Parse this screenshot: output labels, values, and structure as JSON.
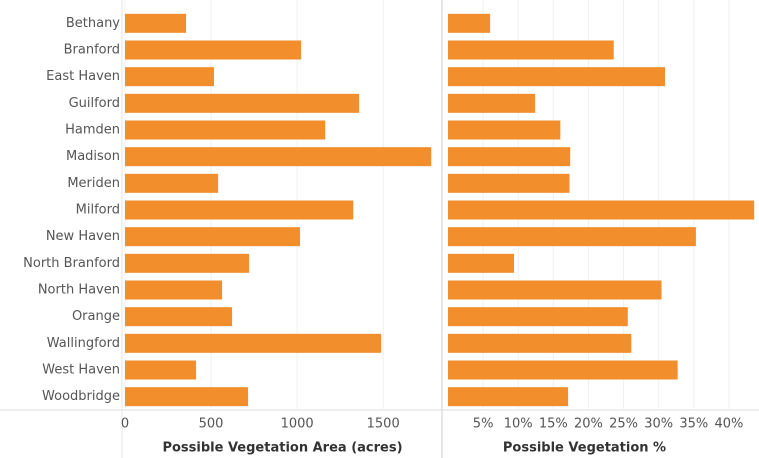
{
  "chart_data": {
    "type": "bar",
    "categories": [
      "Bethany",
      "Branford",
      "East Haven",
      "Guilford",
      "Hamden",
      "Madison",
      "Meriden",
      "Milford",
      "New Haven",
      "North Branford",
      "North Haven",
      "Orange",
      "Wallingford",
      "West Haven",
      "Woodbridge"
    ],
    "grid": true,
    "panels": [
      {
        "xlabel": "Possible Vegetation Area (acres)",
        "color": "#f28e2b",
        "values": [
          355,
          1023,
          517,
          1360,
          1163,
          1779,
          541,
          1326,
          1017,
          721,
          564,
          622,
          1488,
          413,
          715
        ],
        "xlim": [
          0,
          1830
        ],
        "xticks": [
          0,
          500,
          1000,
          1500
        ]
      },
      {
        "xlabel": "Possible Vegetation %",
        "color": "#f28e2b",
        "values": [
          6.0,
          23.6,
          30.9,
          12.4,
          16.0,
          17.4,
          17.3,
          43.6,
          35.3,
          9.4,
          30.4,
          25.6,
          26.1,
          32.7,
          17.1
        ],
        "xlim": [
          0,
          44
        ],
        "xticks": [
          {
            "value": 5,
            "label": "5%"
          },
          {
            "value": 10,
            "label": "10%"
          },
          {
            "value": 15,
            "label": "15%"
          },
          {
            "value": 20,
            "label": "20%"
          },
          {
            "value": 25,
            "label": "25%"
          },
          {
            "value": 30,
            "label": "30%"
          },
          {
            "value": 35,
            "label": "35%"
          },
          {
            "value": 40,
            "label": "40%"
          }
        ]
      }
    ]
  }
}
